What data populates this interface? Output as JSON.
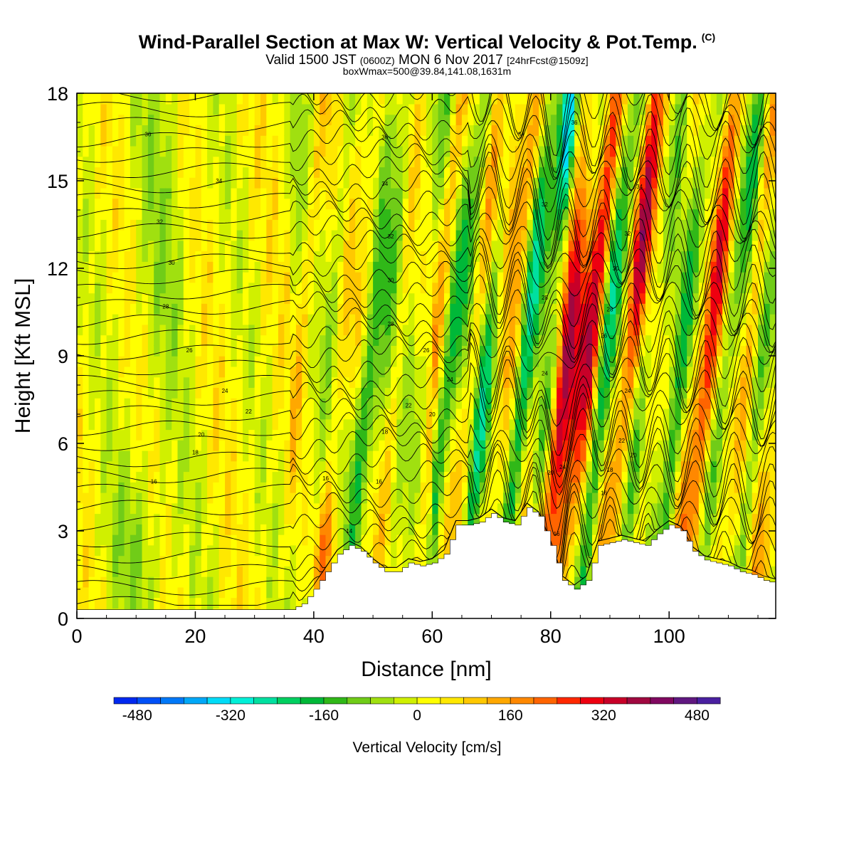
{
  "title": {
    "main": "Wind-Parallel Section at Max W: Vertical Velocity & Pot.Temp.",
    "tag": "(C)",
    "sub_a": "Valid 1500 JST",
    "sub_b": "(0600Z)",
    "sub_c": "MON 6 Nov 2017",
    "sub_d": "[24hrFcst@1509z]",
    "box": "boxWmax=500@39.84,141.08,1631m"
  },
  "chart_data": {
    "type": "heatmap",
    "title": "Wind-Parallel Section at Max W: Vertical Velocity & Pot.Temp.",
    "xlabel": "Distance [nm]",
    "ylabel": "Height [Kft MSL]",
    "xlim": [
      0,
      118
    ],
    "ylim": [
      0,
      18
    ],
    "x_ticks": [
      0,
      20,
      40,
      60,
      80,
      100
    ],
    "y_ticks": [
      0,
      3,
      6,
      9,
      12,
      15,
      18
    ],
    "colorbar": {
      "title": "Vertical Velocity [cm/s]",
      "min": -520,
      "max": 560,
      "step": 40,
      "tick_labels": [
        "-480",
        "-320",
        "-160",
        "0",
        "160",
        "320",
        "480"
      ],
      "tick_values": [
        -480,
        -320,
        -160,
        0,
        160,
        320,
        480
      ],
      "colors": [
        "#0028f0",
        "#0050f8",
        "#0078f8",
        "#00a8f8",
        "#00dcf8",
        "#00f0d8",
        "#00e0a0",
        "#00d060",
        "#00b838",
        "#30b818",
        "#70cc18",
        "#a0e010",
        "#d0f000",
        "#ffff00",
        "#ffe800",
        "#ffc800",
        "#ffa800",
        "#ff8800",
        "#ff6400",
        "#ff2800",
        "#ee0010",
        "#c80028",
        "#a00840",
        "#800860",
        "#601880",
        "#4a20a0"
      ]
    },
    "terrain_kft": [
      [
        0,
        0.3
      ],
      [
        36,
        0.3
      ],
      [
        38,
        0.5
      ],
      [
        40,
        1.0
      ],
      [
        42,
        1.6
      ],
      [
        44,
        2.2
      ],
      [
        46,
        2.5
      ],
      [
        48,
        2.3
      ],
      [
        50,
        1.9
      ],
      [
        52,
        1.6
      ],
      [
        54,
        1.6
      ],
      [
        56,
        1.9
      ],
      [
        58,
        1.8
      ],
      [
        60,
        1.9
      ],
      [
        62,
        2.2
      ],
      [
        64,
        3.2
      ],
      [
        66,
        3.2
      ],
      [
        68,
        3.3
      ],
      [
        70,
        3.6
      ],
      [
        72,
        3.3
      ],
      [
        74,
        3.2
      ],
      [
        76,
        3.8
      ],
      [
        78,
        3.5
      ],
      [
        80,
        2.5
      ],
      [
        82,
        1.3
      ],
      [
        84,
        1.0
      ],
      [
        86,
        1.3
      ],
      [
        88,
        2.5
      ],
      [
        90,
        2.6
      ],
      [
        92,
        2.7
      ],
      [
        94,
        2.6
      ],
      [
        96,
        2.5
      ],
      [
        98,
        2.9
      ],
      [
        100,
        3.2
      ],
      [
        102,
        3.0
      ],
      [
        104,
        2.3
      ],
      [
        106,
        2.0
      ],
      [
        108,
        1.9
      ],
      [
        110,
        1.8
      ],
      [
        112,
        1.6
      ],
      [
        114,
        1.5
      ],
      [
        116,
        1.3
      ],
      [
        118,
        1.2
      ]
    ],
    "w_features": [
      {
        "x": 82,
        "z": 8,
        "w": 520,
        "tilt": 0.45,
        "xwidth": 1.6,
        "zwidth": 7
      },
      {
        "x": 83,
        "z": 16,
        "w": -440,
        "tilt": 0.35,
        "xwidth": 1.4,
        "zwidth": 4
      },
      {
        "x": 79.5,
        "z": 7,
        "w": -280,
        "tilt": 0.6,
        "xwidth": 1.6,
        "zwidth": 5
      },
      {
        "x": 87,
        "z": 11,
        "w": 260,
        "tilt": 0.5,
        "xwidth": 2.4,
        "zwidth": 8
      },
      {
        "x": 74,
        "z": 15,
        "w": 260,
        "tilt": 0.5,
        "xwidth": 2.2,
        "zwidth": 5
      },
      {
        "x": 96,
        "z": 14,
        "w": 220,
        "tilt": 0.5,
        "xwidth": 2.6,
        "zwidth": 7
      },
      {
        "x": 108,
        "z": 10,
        "w": 180,
        "tilt": 0.5,
        "xwidth": 3.0,
        "zwidth": 9
      },
      {
        "x": 91,
        "z": 12,
        "w": -180,
        "tilt": 0.5,
        "xwidth": 2.2,
        "zwidth": 9
      },
      {
        "x": 101,
        "z": 10,
        "w": -170,
        "tilt": 0.5,
        "xwidth": 2.2,
        "zwidth": 10
      },
      {
        "x": 112,
        "z": 12,
        "w": -150,
        "tilt": 0.5,
        "xwidth": 2.2,
        "zwidth": 9
      },
      {
        "x": 77,
        "z": 12,
        "w": -170,
        "tilt": 0.5,
        "xwidth": 2.0,
        "zwidth": 9
      },
      {
        "x": 70,
        "z": 10,
        "w": -150,
        "tilt": 0.5,
        "xwidth": 2.0,
        "zwidth": 8
      },
      {
        "x": 64,
        "z": 9,
        "w": -110,
        "tilt": 0.5,
        "xwidth": 2.2,
        "zwidth": 8
      },
      {
        "x": 53,
        "z": 12,
        "w": -110,
        "tilt": 0.5,
        "xwidth": 2.5,
        "zwidth": 7
      },
      {
        "x": 42,
        "z": 2.5,
        "w": 120,
        "tilt": 0.3,
        "xwidth": 1.6,
        "zwidth": 2
      },
      {
        "x": 48,
        "z": 6,
        "w": -100,
        "tilt": 0.5,
        "xwidth": 2.5,
        "zwidth": 4
      },
      {
        "x": 14,
        "z": 14,
        "w": -60,
        "tilt": 0,
        "xwidth": 5,
        "zwidth": 8
      },
      {
        "x": 10,
        "z": 2,
        "w": -70,
        "tilt": 0,
        "xwidth": 6,
        "zwidth": 3
      }
    ],
    "theta_contour_labels": [
      {
        "x": 12,
        "y": 16.6,
        "t": "36"
      },
      {
        "x": 24,
        "y": 15.0,
        "t": "34"
      },
      {
        "x": 14,
        "y": 13.6,
        "t": "32"
      },
      {
        "x": 16,
        "y": 12.2,
        "t": "30"
      },
      {
        "x": 15,
        "y": 10.7,
        "t": "28"
      },
      {
        "x": 19,
        "y": 9.2,
        "t": "26"
      },
      {
        "x": 25,
        "y": 7.8,
        "t": "24"
      },
      {
        "x": 29,
        "y": 7.1,
        "t": "22"
      },
      {
        "x": 21,
        "y": 6.3,
        "t": "20"
      },
      {
        "x": 20,
        "y": 5.7,
        "t": "18"
      },
      {
        "x": 13,
        "y": 4.7,
        "t": "16"
      },
      {
        "x": 52,
        "y": 16.5,
        "t": "36"
      },
      {
        "x": 52,
        "y": 14.9,
        "t": "34"
      },
      {
        "x": 53,
        "y": 13.1,
        "t": "32"
      },
      {
        "x": 53,
        "y": 11.6,
        "t": "30"
      },
      {
        "x": 53,
        "y": 10.1,
        "t": "28"
      },
      {
        "x": 59,
        "y": 9.2,
        "t": "26"
      },
      {
        "x": 63,
        "y": 8.2,
        "t": "24"
      },
      {
        "x": 56,
        "y": 7.3,
        "t": "22"
      },
      {
        "x": 60,
        "y": 7.0,
        "t": "20"
      },
      {
        "x": 52,
        "y": 6.4,
        "t": "18"
      },
      {
        "x": 42,
        "y": 4.8,
        "t": "16"
      },
      {
        "x": 51,
        "y": 4.7,
        "t": "16"
      },
      {
        "x": 46,
        "y": 3.0,
        "t": "14"
      },
      {
        "x": 75,
        "y": 16.6,
        "t": "34"
      },
      {
        "x": 84,
        "y": 17.0,
        "t": "36"
      },
      {
        "x": 79,
        "y": 14.2,
        "t": "32"
      },
      {
        "x": 79,
        "y": 11.0,
        "t": "28"
      },
      {
        "x": 79,
        "y": 8.4,
        "t": "24"
      },
      {
        "x": 80,
        "y": 5.0,
        "t": "20"
      },
      {
        "x": 82,
        "y": 5.2,
        "t": "24"
      },
      {
        "x": 81,
        "y": 2.9,
        "t": "16"
      },
      {
        "x": 95,
        "y": 14.8,
        "t": "34"
      },
      {
        "x": 93,
        "y": 13.2,
        "t": "32"
      },
      {
        "x": 91,
        "y": 12.0,
        "t": "30"
      },
      {
        "x": 90,
        "y": 10.6,
        "t": "28"
      },
      {
        "x": 89,
        "y": 9.7,
        "t": "26"
      },
      {
        "x": 93,
        "y": 7.8,
        "t": "24"
      },
      {
        "x": 92,
        "y": 6.1,
        "t": "22"
      },
      {
        "x": 94,
        "y": 5.6,
        "t": "20"
      },
      {
        "x": 90,
        "y": 5.1,
        "t": "18"
      },
      {
        "x": 89,
        "y": 4.3,
        "t": "16"
      }
    ]
  }
}
